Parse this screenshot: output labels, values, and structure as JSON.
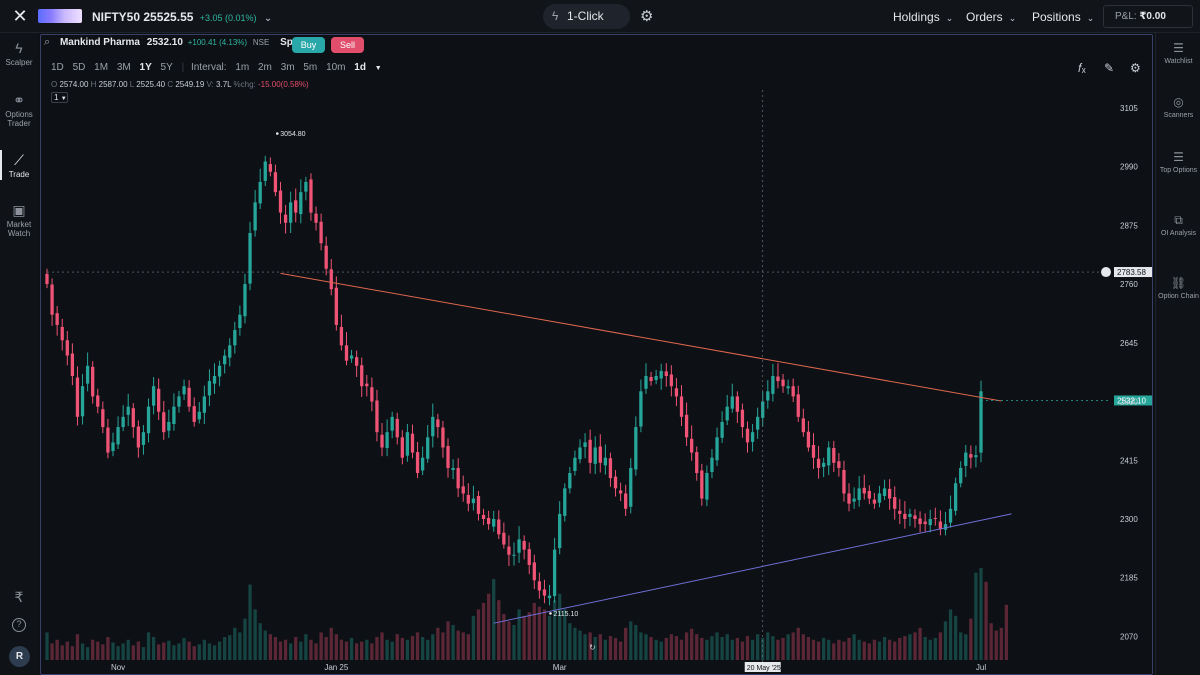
{
  "topbar": {
    "index_name": "NIFTY50",
    "index_value": "25525.55",
    "index_change": "+3.05 (0.01%)",
    "one_click_label": "1-Click OFF",
    "nav": [
      "Holdings",
      "Orders",
      "Positions"
    ],
    "pnl_label": "P&L:",
    "pnl_value": "₹0.00"
  },
  "leftbar": {
    "items": [
      {
        "label": "Scalper",
        "icon": "bolt-icon"
      },
      {
        "label": "Options Trader",
        "icon": "link-icon"
      },
      {
        "label": "Trade",
        "icon": "chart-line-icon"
      },
      {
        "label": "Market Watch",
        "icon": "search-doc-icon"
      }
    ],
    "avatar": "R"
  },
  "rightbar": {
    "items": [
      "Watchlist",
      "Scanners",
      "Top Options",
      "OI Analysis",
      "Option Chain"
    ]
  },
  "symbol": {
    "name": "Mankind Pharma",
    "price": "2532.10",
    "change": "+100.41 (4.13%)",
    "exchange": "NSE",
    "type": "Spot",
    "buy_label": "Buy",
    "sell_label": "Sell"
  },
  "timeframes": {
    "ranges": [
      "1D",
      "5D",
      "1M",
      "3M",
      "1Y",
      "5Y"
    ],
    "active_range": "1Y",
    "interval_label": "Interval:",
    "intervals": [
      "1m",
      "2m",
      "3m",
      "5m",
      "10m"
    ],
    "active_interval": "1d"
  },
  "ohlc": {
    "o": "2574.00",
    "h": "2587.00",
    "l": "2525.40",
    "c": "2549.19",
    "v": "3.7L",
    "pchg_label": "%chg:",
    "pchg": "-15.00(0.58%)"
  },
  "chart_count": "1",
  "chart_data": {
    "type": "candlestick",
    "y_ticks": [
      3105,
      2990,
      2875,
      2760,
      2645,
      2530,
      2415,
      2300,
      2185,
      2070
    ],
    "ylim": [
      2020,
      3140
    ],
    "x_ticks": [
      "Nov",
      "Jan 25",
      "Mar",
      "Jul"
    ],
    "x_tick_index": [
      14,
      57,
      101,
      184
    ],
    "crosshair_price": "2783.58",
    "crosshair_date": "20 May '25",
    "last_price_label": "2532.10",
    "high_annotation": "3054.80",
    "low_annotation": "2115.10",
    "trendlines": [
      {
        "name": "resistance",
        "color": "#e0674f",
        "from": [
          46,
          2781
        ],
        "to": [
          188,
          2531
        ]
      },
      {
        "name": "support",
        "color": "#6f6fd8",
        "from": [
          88,
          2096
        ],
        "to": [
          190,
          2310
        ]
      }
    ],
    "colors": {
      "up": "#26a69a",
      "down": "#ef5375"
    },
    "closes": [
      2760,
      2700,
      2680,
      2650,
      2620,
      2580,
      2500,
      2560,
      2600,
      2540,
      2520,
      2480,
      2430,
      2450,
      2480,
      2500,
      2520,
      2480,
      2440,
      2470,
      2520,
      2560,
      2510,
      2470,
      2490,
      2520,
      2540,
      2560,
      2520,
      2490,
      2510,
      2540,
      2570,
      2580,
      2600,
      2620,
      2640,
      2670,
      2700,
      2760,
      2860,
      2920,
      2960,
      3000,
      2980,
      2940,
      2900,
      2880,
      2920,
      2900,
      2940,
      2960,
      2900,
      2880,
      2840,
      2790,
      2750,
      2680,
      2640,
      2610,
      2620,
      2600,
      2560,
      2560,
      2530,
      2470,
      2440,
      2470,
      2500,
      2460,
      2420,
      2470,
      2430,
      2390,
      2420,
      2460,
      2500,
      2480,
      2440,
      2400,
      2400,
      2360,
      2350,
      2330,
      2340,
      2310,
      2300,
      2290,
      2300,
      2270,
      2250,
      2230,
      2230,
      2260,
      2240,
      2210,
      2180,
      2160,
      2150,
      2150,
      2240,
      2310,
      2360,
      2390,
      2420,
      2440,
      2450,
      2410,
      2440,
      2410,
      2420,
      2380,
      2360,
      2350,
      2320,
      2400,
      2480,
      2550,
      2580,
      2570,
      2580,
      2590,
      2580,
      2560,
      2540,
      2500,
      2460,
      2430,
      2390,
      2340,
      2390,
      2420,
      2460,
      2490,
      2520,
      2540,
      2510,
      2480,
      2450,
      2470,
      2500,
      2530,
      2550,
      2580,
      2570,
      2560,
      2560,
      2540,
      2500,
      2470,
      2440,
      2420,
      2400,
      2410,
      2440,
      2410,
      2400,
      2350,
      2330,
      2340,
      2360,
      2350,
      2340,
      2330,
      2350,
      2360,
      2340,
      2320,
      2310,
      2300,
      2310,
      2300,
      2290,
      2290,
      2300,
      2300,
      2280,
      2290,
      2320,
      2370,
      2400,
      2430,
      2420,
      2425,
      2550
    ],
    "volumes": [
      0.3,
      0.18,
      0.22,
      0.16,
      0.2,
      0.15,
      0.28,
      0.18,
      0.14,
      0.22,
      0.2,
      0.17,
      0.25,
      0.19,
      0.15,
      0.18,
      0.22,
      0.16,
      0.2,
      0.14,
      0.3,
      0.25,
      0.17,
      0.19,
      0.21,
      0.16,
      0.18,
      0.24,
      0.2,
      0.15,
      0.17,
      0.22,
      0.18,
      0.16,
      0.2,
      0.25,
      0.27,
      0.35,
      0.3,
      0.45,
      0.82,
      0.55,
      0.4,
      0.32,
      0.28,
      0.25,
      0.2,
      0.22,
      0.18,
      0.25,
      0.2,
      0.28,
      0.22,
      0.18,
      0.3,
      0.25,
      0.35,
      0.28,
      0.22,
      0.2,
      0.24,
      0.18,
      0.2,
      0.22,
      0.18,
      0.25,
      0.3,
      0.22,
      0.2,
      0.28,
      0.24,
      0.22,
      0.26,
      0.3,
      0.25,
      0.22,
      0.28,
      0.35,
      0.3,
      0.42,
      0.38,
      0.32,
      0.3,
      0.28,
      0.48,
      0.55,
      0.62,
      0.72,
      0.88,
      0.65,
      0.5,
      0.42,
      0.38,
      0.55,
      0.48,
      0.52,
      0.62,
      0.58,
      0.55,
      0.48,
      0.65,
      0.72,
      0.55,
      0.4,
      0.35,
      0.32,
      0.28,
      0.3,
      0.25,
      0.28,
      0.22,
      0.26,
      0.24,
      0.2,
      0.35,
      0.42,
      0.38,
      0.3,
      0.28,
      0.25,
      0.22,
      0.2,
      0.24,
      0.28,
      0.26,
      0.22,
      0.3,
      0.34,
      0.28,
      0.24,
      0.22,
      0.26,
      0.3,
      0.25,
      0.28,
      0.22,
      0.24,
      0.2,
      0.26,
      0.22,
      0.28,
      0.24,
      0.3,
      0.26,
      0.22,
      0.24,
      0.28,
      0.3,
      0.35,
      0.28,
      0.25,
      0.22,
      0.2,
      0.24,
      0.22,
      0.18,
      0.22,
      0.2,
      0.24,
      0.28,
      0.22,
      0.2,
      0.18,
      0.22,
      0.2,
      0.25,
      0.22,
      0.2,
      0.24,
      0.26,
      0.28,
      0.3,
      0.35,
      0.25,
      0.22,
      0.24,
      0.3,
      0.42,
      0.55,
      0.48,
      0.3,
      0.28,
      0.45,
      0.95,
      1.0,
      0.85,
      0.4,
      0.32,
      0.35,
      0.6
    ]
  }
}
